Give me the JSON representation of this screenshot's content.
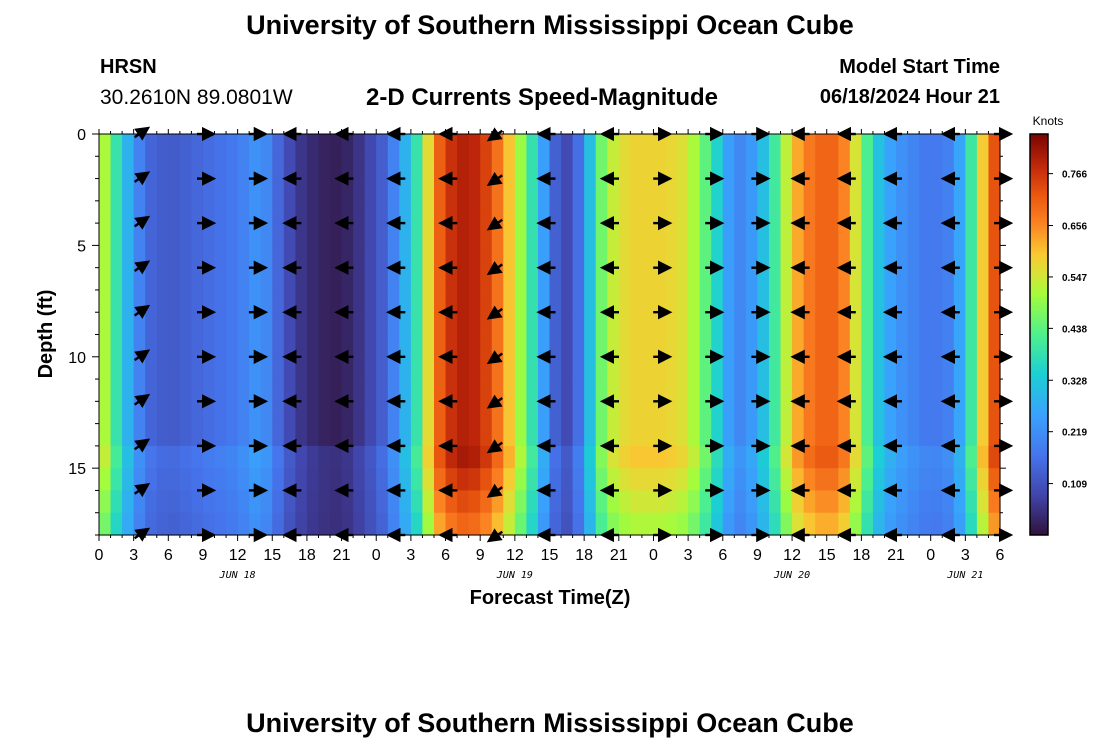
{
  "page": {
    "title": "University of Southern Mississippi Ocean Cube",
    "title_repeat": "University of Southern Mississippi Ocean Cube",
    "station": "HRSN",
    "coordinates": "30.2610N  89.0801W",
    "subtitle": "2-D Currents Speed-Magnitude",
    "model_start_label": "Model Start Time",
    "model_start_value": "06/18/2024 Hour 21"
  },
  "chart_data": {
    "type": "heatmap",
    "title": "2-D Currents Speed-Magnitude",
    "xlabel": "Forecast Time(Z)",
    "ylabel": "Depth (ft)",
    "x_ticks": [
      "0",
      "3",
      "6",
      "9",
      "12",
      "15",
      "18",
      "21",
      "0",
      "3",
      "6",
      "9",
      "12",
      "15",
      "18",
      "21",
      "0",
      "3",
      "6",
      "9",
      "12",
      "15",
      "18",
      "21",
      "0",
      "3",
      "6"
    ],
    "x_range_hours": [
      0,
      78
    ],
    "date_labels": [
      {
        "text": "JUN 18",
        "hour": 12
      },
      {
        "text": "JUN 19",
        "hour": 36
      },
      {
        "text": "JUN 20",
        "hour": 60
      },
      {
        "text": "JUN 21",
        "hour": 75
      }
    ],
    "y_ticks": [
      0,
      5,
      10,
      15
    ],
    "y_range": [
      0,
      18
    ],
    "colorbar": {
      "label": "Knots",
      "ticks": [
        "0.766",
        "0.656",
        "0.547",
        "0.438",
        "0.328",
        "0.219",
        "0.109"
      ],
      "range": [
        0,
        0.85
      ]
    },
    "surface_speed_knots": [
      {
        "hour": 0,
        "value": 0.58
      },
      {
        "hour": 1,
        "value": 0.45
      },
      {
        "hour": 2,
        "value": 0.33
      },
      {
        "hour": 3,
        "value": 0.24
      },
      {
        "hour": 4,
        "value": 0.15
      },
      {
        "hour": 6,
        "value": 0.12
      },
      {
        "hour": 9,
        "value": 0.15
      },
      {
        "hour": 12,
        "value": 0.18
      },
      {
        "hour": 14,
        "value": 0.24
      },
      {
        "hour": 15,
        "value": 0.17
      },
      {
        "hour": 17,
        "value": 0.07
      },
      {
        "hour": 19,
        "value": 0.03
      },
      {
        "hour": 21,
        "value": 0.02
      },
      {
        "hour": 23,
        "value": 0.07
      },
      {
        "hour": 25,
        "value": 0.15
      },
      {
        "hour": 26,
        "value": 0.24
      },
      {
        "hour": 27,
        "value": 0.33
      },
      {
        "hour": 28,
        "value": 0.45
      },
      {
        "hour": 29,
        "value": 0.68
      },
      {
        "hour": 31,
        "value": 0.8
      },
      {
        "hour": 33,
        "value": 0.78
      },
      {
        "hour": 35,
        "value": 0.65
      },
      {
        "hour": 36,
        "value": 0.55
      },
      {
        "hour": 37,
        "value": 0.45
      },
      {
        "hour": 38,
        "value": 0.32
      },
      {
        "hour": 39,
        "value": 0.18
      },
      {
        "hour": 40,
        "value": 0.09
      },
      {
        "hour": 41,
        "value": 0.1
      },
      {
        "hour": 42,
        "value": 0.22
      },
      {
        "hour": 43,
        "value": 0.4
      },
      {
        "hour": 44,
        "value": 0.52
      },
      {
        "hour": 46,
        "value": 0.58
      },
      {
        "hour": 49,
        "value": 0.58
      },
      {
        "hour": 51,
        "value": 0.55
      },
      {
        "hour": 52,
        "value": 0.48
      },
      {
        "hour": 53,
        "value": 0.4
      },
      {
        "hour": 54,
        "value": 0.3
      },
      {
        "hour": 55,
        "value": 0.2
      },
      {
        "hour": 56,
        "value": 0.21
      },
      {
        "hour": 57,
        "value": 0.27
      },
      {
        "hour": 58,
        "value": 0.35
      },
      {
        "hour": 59,
        "value": 0.46
      },
      {
        "hour": 60,
        "value": 0.6
      },
      {
        "hour": 62,
        "value": 0.7
      },
      {
        "hour": 64,
        "value": 0.7
      },
      {
        "hour": 65,
        "value": 0.62
      },
      {
        "hour": 66,
        "value": 0.48
      },
      {
        "hour": 67,
        "value": 0.36
      },
      {
        "hour": 68,
        "value": 0.27
      },
      {
        "hour": 70,
        "value": 0.21
      },
      {
        "hour": 72,
        "value": 0.17
      },
      {
        "hour": 74,
        "value": 0.2
      },
      {
        "hour": 75,
        "value": 0.32
      },
      {
        "hour": 76,
        "value": 0.48
      },
      {
        "hour": 77,
        "value": 0.7
      },
      {
        "hour": 78,
        "value": 0.75
      }
    ],
    "arrow_times_hours": [
      3.5,
      9,
      13.5,
      17,
      21.5,
      26,
      30.5,
      34.5,
      39,
      44.5,
      48.5,
      53,
      57,
      61,
      65,
      69,
      74,
      78
    ],
    "arrow_depths_ft": [
      0,
      2,
      4,
      6,
      8,
      10,
      12,
      14,
      16,
      18
    ],
    "arrow_directions": [
      "ne",
      "e",
      "e",
      "w",
      "w",
      "w",
      "w",
      "sw",
      "w",
      "w",
      "e",
      "e",
      "e",
      "w",
      "w",
      "w",
      "w",
      "e"
    ]
  }
}
